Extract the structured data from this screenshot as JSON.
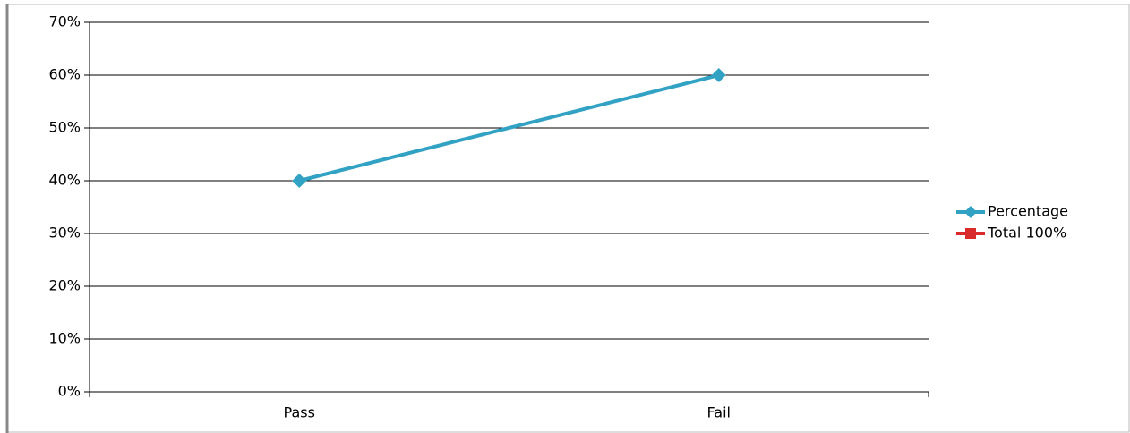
{
  "chart_data": {
    "type": "line",
    "categories": [
      "Pass",
      "Fail"
    ],
    "series": [
      {
        "name": "Percentage",
        "color": "#31a2c4",
        "values": [
          40,
          60
        ]
      },
      {
        "name": "Total 100%",
        "color": "#d92b2b",
        "values": [
          null,
          null
        ]
      }
    ],
    "ylim": [
      0,
      70
    ],
    "yticks": [
      {
        "value": 0,
        "label": "0%"
      },
      {
        "value": 10,
        "label": "10%"
      },
      {
        "value": 20,
        "label": "20%"
      },
      {
        "value": 30,
        "label": "30%"
      },
      {
        "value": 40,
        "label": "40%"
      },
      {
        "value": 50,
        "label": "50%"
      },
      {
        "value": 60,
        "label": "60%"
      },
      {
        "value": 70,
        "label": "70%"
      }
    ],
    "grid": true,
    "legend": "right"
  }
}
